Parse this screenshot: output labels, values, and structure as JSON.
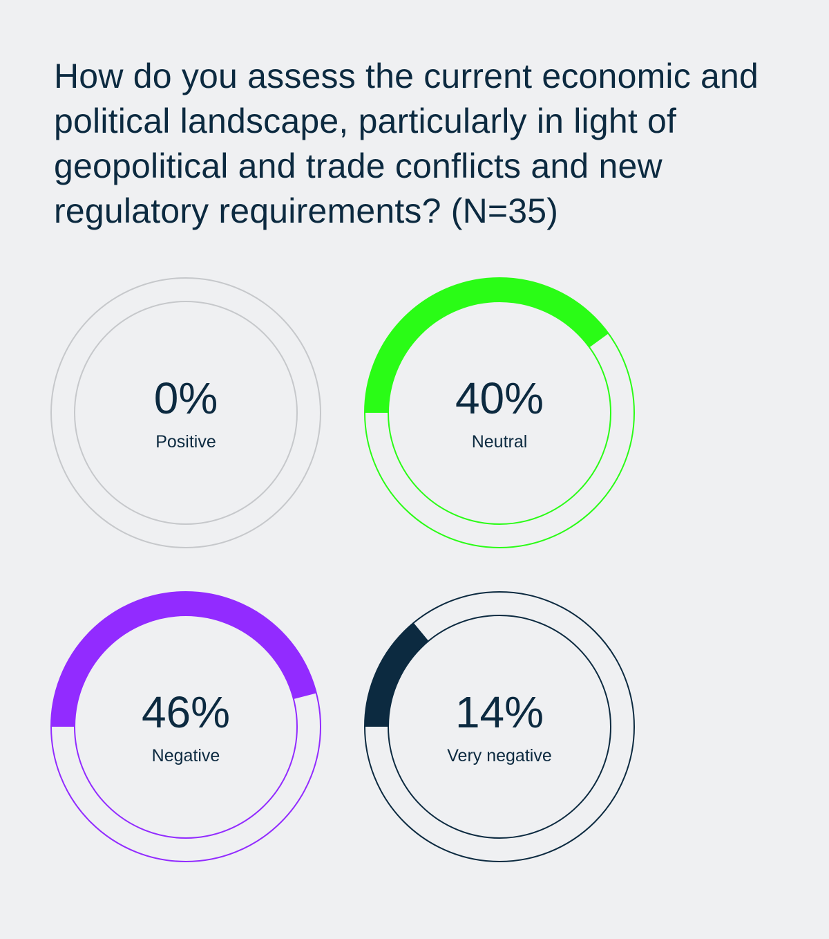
{
  "title": "How do you assess the current economic and political landscape, particularly in light of geopolitical and trade conflicts and new regulatory requirements? (N=35)",
  "chart_data": {
    "type": "pie",
    "title": "How do you assess the current economic and political landscape, particularly in light of geopolitical and trade conflicts and new regulatory requirements? (N=35)",
    "unit": "%",
    "slices": [
      {
        "label": "Positive",
        "value": 0,
        "value_label": "0%",
        "color": "#c6c8cb"
      },
      {
        "label": "Neutral",
        "value": 40,
        "value_label": "40%",
        "color": "#2afc16"
      },
      {
        "label": "Negative",
        "value": 46,
        "value_label": "46%",
        "color": "#922bff"
      },
      {
        "label": "Very negative",
        "value": 14,
        "value_label": "14%",
        "color": "#0c2a40"
      }
    ]
  }
}
